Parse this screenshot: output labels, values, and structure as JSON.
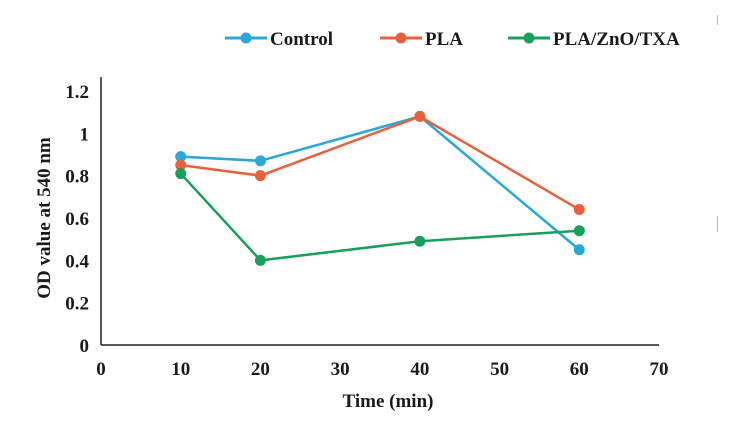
{
  "chart_data": {
    "type": "line",
    "title": "",
    "xlabel": "Time (min)",
    "ylabel": "OD value at 540 nm",
    "xlim": [
      0,
      70
    ],
    "ylim": [
      0,
      1.2
    ],
    "xticks": [
      0,
      10,
      20,
      30,
      40,
      50,
      60,
      70
    ],
    "yticks": [
      0,
      0.2,
      0.4,
      0.6,
      0.8,
      1,
      1.2
    ],
    "xtick_labels": [
      "0",
      "10",
      "20",
      "30",
      "40",
      "50",
      "60",
      "70"
    ],
    "ytick_labels": [
      "0",
      "0.2",
      "0.4",
      "0.6",
      "0.8",
      "1",
      "1.2"
    ],
    "grid": false,
    "legend_position": "top",
    "series": [
      {
        "name": "Control",
        "color": "#2aa7d6",
        "x": [
          10,
          20,
          40,
          60
        ],
        "y": [
          0.89,
          0.87,
          1.08,
          0.45
        ]
      },
      {
        "name": "PLA",
        "color": "#e8603c",
        "x": [
          10,
          20,
          40,
          60
        ],
        "y": [
          0.85,
          0.8,
          1.08,
          0.64
        ]
      },
      {
        "name": "PLA/ZnO/TXA",
        "color": "#16a05a",
        "x": [
          10,
          20,
          40,
          60
        ],
        "y": [
          0.81,
          0.4,
          0.49,
          0.54
        ]
      }
    ]
  }
}
